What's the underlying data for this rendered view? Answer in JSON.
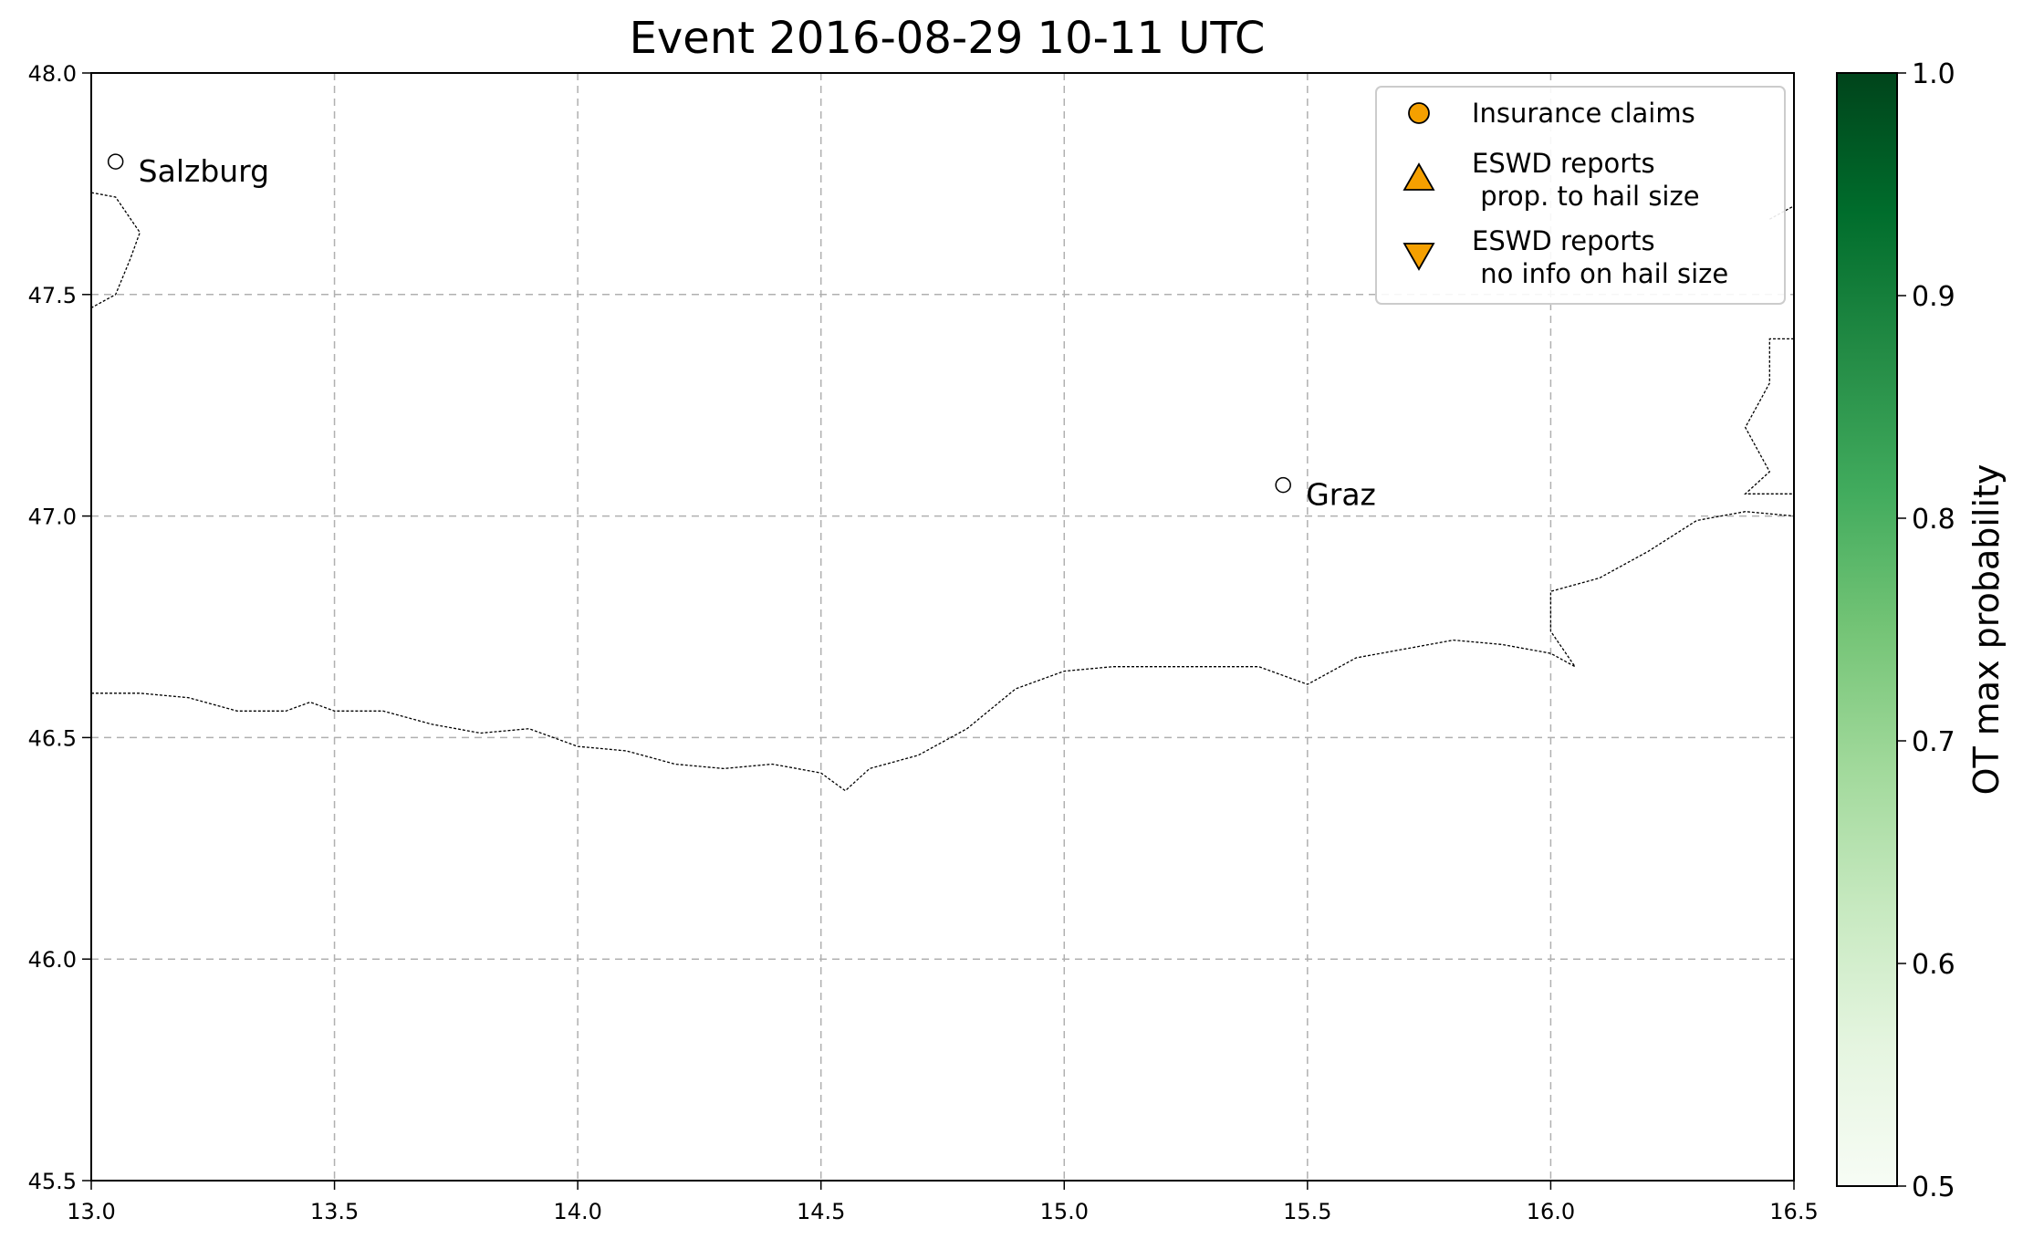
{
  "title": "Event 2016-08-29 10-11 UTC",
  "map": {
    "xlim": [
      13.0,
      16.5
    ],
    "ylim": [
      45.5,
      48.0
    ],
    "grid": true,
    "x_ticks": [
      "13.0",
      "13.5",
      "14.0",
      "14.5",
      "15.0",
      "15.5",
      "16.0",
      "16.5"
    ],
    "y_ticks": [
      "45.5",
      "46.0",
      "46.5",
      "47.0",
      "47.5",
      "48.0"
    ],
    "x_tick_values": [
      13.0,
      13.5,
      14.0,
      14.5,
      15.0,
      15.5,
      16.0,
      16.5
    ],
    "y_tick_values": [
      45.5,
      46.0,
      46.5,
      47.0,
      47.5,
      48.0
    ]
  },
  "cities": [
    {
      "name": "Salzburg",
      "lon": 13.05,
      "lat": 47.8
    },
    {
      "name": "Graz",
      "lon": 15.45,
      "lat": 47.07
    }
  ],
  "borders": {
    "southern": [
      [
        13.0,
        46.6
      ],
      [
        13.1,
        46.6
      ],
      [
        13.2,
        46.59
      ],
      [
        13.3,
        46.56
      ],
      [
        13.4,
        46.56
      ],
      [
        13.45,
        46.58
      ],
      [
        13.5,
        46.56
      ],
      [
        13.6,
        46.56
      ],
      [
        13.7,
        46.53
      ],
      [
        13.8,
        46.51
      ],
      [
        13.9,
        46.52
      ],
      [
        14.0,
        46.48
      ],
      [
        14.1,
        46.47
      ],
      [
        14.2,
        46.44
      ],
      [
        14.3,
        46.43
      ],
      [
        14.4,
        46.44
      ],
      [
        14.5,
        46.42
      ],
      [
        14.55,
        46.38
      ],
      [
        14.6,
        46.43
      ],
      [
        14.7,
        46.46
      ],
      [
        14.8,
        46.52
      ],
      [
        14.9,
        46.61
      ],
      [
        15.0,
        46.65
      ],
      [
        15.1,
        46.66
      ],
      [
        15.2,
        46.66
      ],
      [
        15.3,
        46.66
      ],
      [
        15.4,
        46.66
      ],
      [
        15.5,
        46.62
      ],
      [
        15.6,
        46.68
      ],
      [
        15.7,
        46.7
      ],
      [
        15.8,
        46.72
      ],
      [
        15.9,
        46.71
      ],
      [
        16.0,
        46.69
      ],
      [
        16.05,
        46.66
      ],
      [
        16.0,
        46.74
      ],
      [
        16.0,
        46.83
      ],
      [
        16.1,
        46.86
      ],
      [
        16.2,
        46.92
      ],
      [
        16.3,
        46.99
      ],
      [
        16.4,
        47.01
      ],
      [
        16.5,
        47.0
      ]
    ],
    "western_fragment": [
      [
        13.0,
        47.73
      ],
      [
        13.05,
        47.72
      ],
      [
        13.1,
        47.64
      ],
      [
        13.08,
        47.58
      ],
      [
        13.05,
        47.5
      ],
      [
        13.0,
        47.47
      ]
    ],
    "eastern_fragment": [
      [
        16.5,
        47.4
      ],
      [
        16.45,
        47.4
      ],
      [
        16.45,
        47.3
      ],
      [
        16.4,
        47.2
      ],
      [
        16.45,
        47.1
      ],
      [
        16.4,
        47.05
      ],
      [
        16.5,
        47.05
      ]
    ],
    "ne_fragment": [
      [
        16.45,
        47.67
      ],
      [
        16.5,
        47.7
      ],
      [
        16.5,
        47.64
      ]
    ]
  },
  "legend": {
    "location": "upper right",
    "entries": [
      {
        "marker": "circle",
        "line1": "Insurance claims",
        "line2": ""
      },
      {
        "marker": "triangle-up",
        "line1": "ESWD reports",
        "line2": " prop. to hail size"
      },
      {
        "marker": "triangle-down",
        "line1": "ESWD reports",
        "line2": " no info on hail size"
      }
    ],
    "marker_color": "#f5a000"
  },
  "colorbar": {
    "label": "OT max probability",
    "range": [
      0.5,
      1.0
    ],
    "ticks": [
      "0.5",
      "0.6",
      "0.7",
      "0.8",
      "0.9",
      "1.0"
    ],
    "tick_values": [
      0.5,
      0.6,
      0.7,
      0.8,
      0.9,
      1.0
    ],
    "colormap": "Greens",
    "stops": [
      "#f7fcf5",
      "#e5f5e0",
      "#c7e9c0",
      "#a1d99b",
      "#74c476",
      "#41ab5d",
      "#238b45",
      "#006d2c",
      "#00441b"
    ]
  }
}
